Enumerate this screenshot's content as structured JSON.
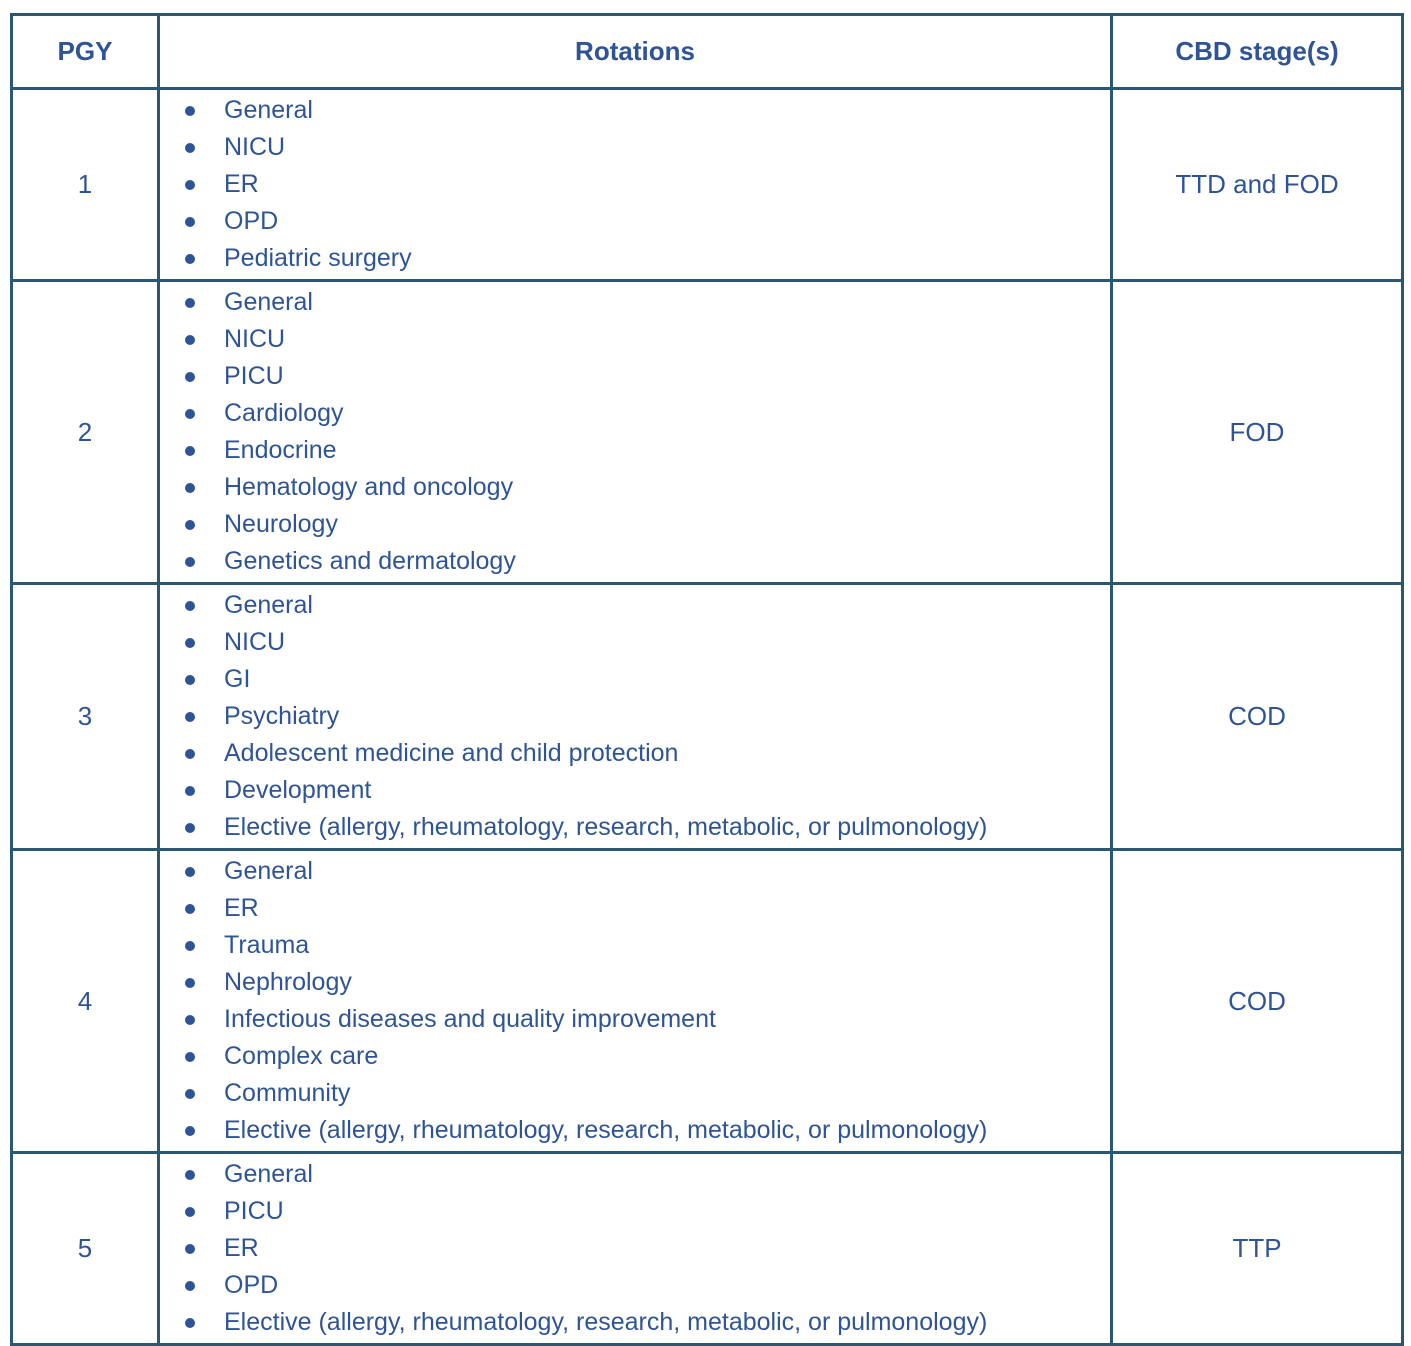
{
  "table": {
    "headers": [
      "PGY",
      "Rotations",
      "CBD stage(s)"
    ],
    "rows": [
      {
        "pgy": "1",
        "rotations": [
          "General",
          "NICU",
          "ER",
          "OPD",
          "Pediatric surgery"
        ],
        "cbd": "TTD and FOD"
      },
      {
        "pgy": "2",
        "rotations": [
          "General",
          "NICU",
          "PICU",
          "Cardiology",
          "Endocrine",
          "Hematology and oncology",
          "Neurology",
          "Genetics and dermatology"
        ],
        "cbd": "FOD"
      },
      {
        "pgy": "3",
        "rotations": [
          "General",
          "NICU",
          "GI",
          "Psychiatry",
          "Adolescent medicine and child protection",
          "Development",
          "Elective (allergy, rheumatology, research, metabolic, or pulmonology)"
        ],
        "cbd": "COD"
      },
      {
        "pgy": "4",
        "rotations": [
          "General",
          "ER",
          "Trauma",
          "Nephrology",
          "Infectious diseases and quality improvement",
          "Complex care",
          "Community",
          "Elective (allergy, rheumatology, research, metabolic, or pulmonology)"
        ],
        "cbd": "COD"
      },
      {
        "pgy": "5",
        "rotations": [
          "General",
          "PICU",
          "ER",
          "OPD",
          "Elective (allergy, rheumatology, research, metabolic, or pulmonology)"
        ],
        "cbd": "TTP"
      }
    ],
    "colors": {
      "text": "#2F5496",
      "border": "#2B5871",
      "background": "#FFFFFF"
    }
  }
}
